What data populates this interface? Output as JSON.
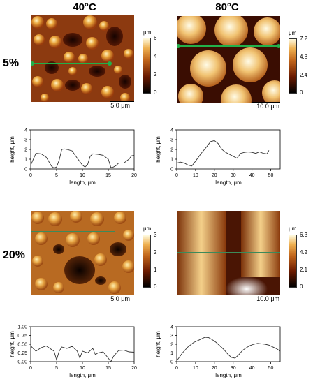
{
  "columns": {
    "left": "40°C",
    "right": "80°C"
  },
  "rows": {
    "top": "5%",
    "bottom": "20%"
  },
  "panels": {
    "tl": {
      "scale": "5.0 μm",
      "colorbar": {
        "unit": "μm",
        "ticks": [
          "6",
          "4",
          "2",
          "0"
        ]
      },
      "profile": {
        "xlabel": "length, μm",
        "ylabel": "height, μm",
        "xticks": [
          "0",
          "5",
          "10",
          "15",
          "20"
        ],
        "yticks": [
          "0",
          "1",
          "2",
          "3",
          "4"
        ]
      }
    },
    "tr": {
      "scale": "10.0 μm",
      "colorbar": {
        "unit": "μm",
        "ticks": [
          "7.2",
          "4.8",
          "2.4",
          "0"
        ]
      },
      "profile": {
        "xlabel": "length, μm",
        "ylabel": "height, μm",
        "xticks": [
          "0",
          "10",
          "20",
          "30",
          "40",
          "50"
        ],
        "yticks": [
          "0",
          "1",
          "2",
          "3",
          "4"
        ]
      }
    },
    "bl": {
      "scale": "5.0 μm",
      "colorbar": {
        "unit": "μm",
        "ticks": [
          "3",
          "2",
          "1",
          "0"
        ]
      },
      "profile": {
        "xlabel": "length, μm",
        "ylabel": "height, μm",
        "xticks": [
          "0",
          "5",
          "10",
          "15",
          "20"
        ],
        "yticks": [
          "0.00",
          "0.25",
          "0.50",
          "0.75",
          "1.00"
        ]
      }
    },
    "br": {
      "scale": "10.0 μm",
      "colorbar": {
        "unit": "μm",
        "ticks": [
          "6.3",
          "4.2",
          "2.1",
          "0"
        ]
      },
      "profile": {
        "xlabel": "length, μm",
        "ylabel": "height, μm",
        "xticks": [
          "0",
          "10",
          "20",
          "30",
          "40",
          "50"
        ],
        "yticks": [
          "0",
          "1",
          "2",
          "3",
          "4"
        ]
      }
    }
  },
  "chart_data": [
    {
      "type": "line",
      "panel": "5% 40°C",
      "xlim": [
        0,
        20
      ],
      "ylim": [
        0,
        4
      ],
      "x": [
        0,
        1,
        2,
        3,
        4,
        4.5,
        5,
        5.5,
        6,
        6.5,
        7,
        8,
        9,
        10,
        10.5,
        11,
        11.5,
        12,
        13,
        14,
        15,
        15.5,
        16,
        16.5,
        17,
        18,
        19,
        19.5,
        20
      ],
      "y": [
        0.4,
        1.6,
        1.55,
        1.2,
        0.3,
        0.1,
        0.2,
        0.9,
        2.0,
        2.05,
        2.0,
        1.85,
        1.1,
        0.4,
        0.2,
        0.45,
        1.3,
        1.55,
        1.5,
        1.4,
        1.0,
        0.15,
        0.2,
        0.35,
        0.6,
        0.6,
        1.0,
        1.35,
        1.4
      ]
    },
    {
      "type": "line",
      "panel": "5% 80°C",
      "xlim": [
        0,
        55
      ],
      "ylim": [
        0,
        4
      ],
      "x": [
        0,
        2,
        4,
        6,
        8,
        10,
        13,
        16,
        18,
        20,
        22,
        24,
        26,
        28,
        30,
        32,
        34,
        36,
        38,
        40,
        42,
        44,
        46,
        48,
        49
      ],
      "y": [
        0.6,
        0.7,
        0.6,
        0.4,
        0.3,
        0.8,
        1.6,
        2.3,
        2.8,
        2.9,
        2.6,
        2.0,
        1.7,
        1.5,
        1.3,
        1.1,
        1.6,
        1.7,
        1.75,
        1.7,
        1.6,
        1.75,
        1.6,
        1.55,
        1.9
      ]
    },
    {
      "type": "line",
      "panel": "20% 40°C",
      "xlim": [
        0,
        20
      ],
      "ylim": [
        0,
        1
      ],
      "x": [
        0,
        1,
        2,
        3,
        4,
        4.5,
        5,
        5.5,
        6,
        7,
        8,
        9,
        9.5,
        10,
        11,
        12,
        12.5,
        13,
        14,
        15,
        15.5,
        16,
        17,
        18,
        19,
        20
      ],
      "y": [
        0.45,
        0.3,
        0.4,
        0.45,
        0.35,
        0.3,
        0.05,
        0.3,
        0.42,
        0.38,
        0.44,
        0.3,
        0.1,
        0.3,
        0.25,
        0.38,
        0.2,
        0.25,
        0.28,
        0.1,
        0.0,
        0.15,
        0.32,
        0.33,
        0.28,
        0.27
      ]
    },
    {
      "type": "line",
      "panel": "20% 80°C",
      "xlim": [
        0,
        55
      ],
      "ylim": [
        0,
        4
      ],
      "x": [
        0,
        3,
        6,
        9,
        12,
        15,
        17,
        19,
        21,
        23,
        25,
        27,
        29,
        31,
        33,
        35,
        37,
        39,
        41,
        43,
        45,
        47,
        49,
        51,
        53,
        55
      ],
      "y": [
        0.1,
        1.0,
        1.7,
        2.2,
        2.5,
        2.8,
        2.75,
        2.5,
        2.2,
        1.8,
        1.4,
        0.9,
        0.5,
        0.4,
        0.8,
        1.3,
        1.6,
        1.85,
        2.0,
        2.1,
        2.05,
        2.0,
        1.9,
        1.7,
        1.5,
        1.2
      ]
    }
  ]
}
